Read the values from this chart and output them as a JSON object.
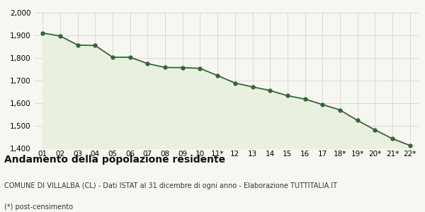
{
  "x_labels": [
    "01",
    "02",
    "03",
    "04",
    "05",
    "06",
    "07",
    "08",
    "09",
    "10",
    "11*",
    "12",
    "13",
    "14",
    "15",
    "16",
    "17",
    "18*",
    "19*",
    "20*",
    "21*",
    "22*"
  ],
  "values": [
    1910,
    1897,
    1857,
    1855,
    1803,
    1803,
    1775,
    1758,
    1757,
    1754,
    1722,
    1689,
    1672,
    1656,
    1633,
    1618,
    1594,
    1570,
    1524,
    1482,
    1443,
    1413
  ],
  "line_color": "#336633",
  "fill_color": "#eaf0e0",
  "marker_color": "#336633",
  "bg_color": "#f7f7f2",
  "grid_color": "#cccccc",
  "ylim": [
    1400,
    2000
  ],
  "yticks": [
    1400,
    1500,
    1600,
    1700,
    1800,
    1900,
    2000
  ],
  "title": "Andamento della popolazione residente",
  "subtitle": "COMUNE DI VILLALBA (CL) - Dati ISTAT al 31 dicembre di ogni anno - Elaborazione TUTTITALIA.IT",
  "footnote": "(*) post-censimento",
  "title_fontsize": 10,
  "subtitle_fontsize": 7,
  "footnote_fontsize": 7,
  "tick_fontsize": 7.5
}
